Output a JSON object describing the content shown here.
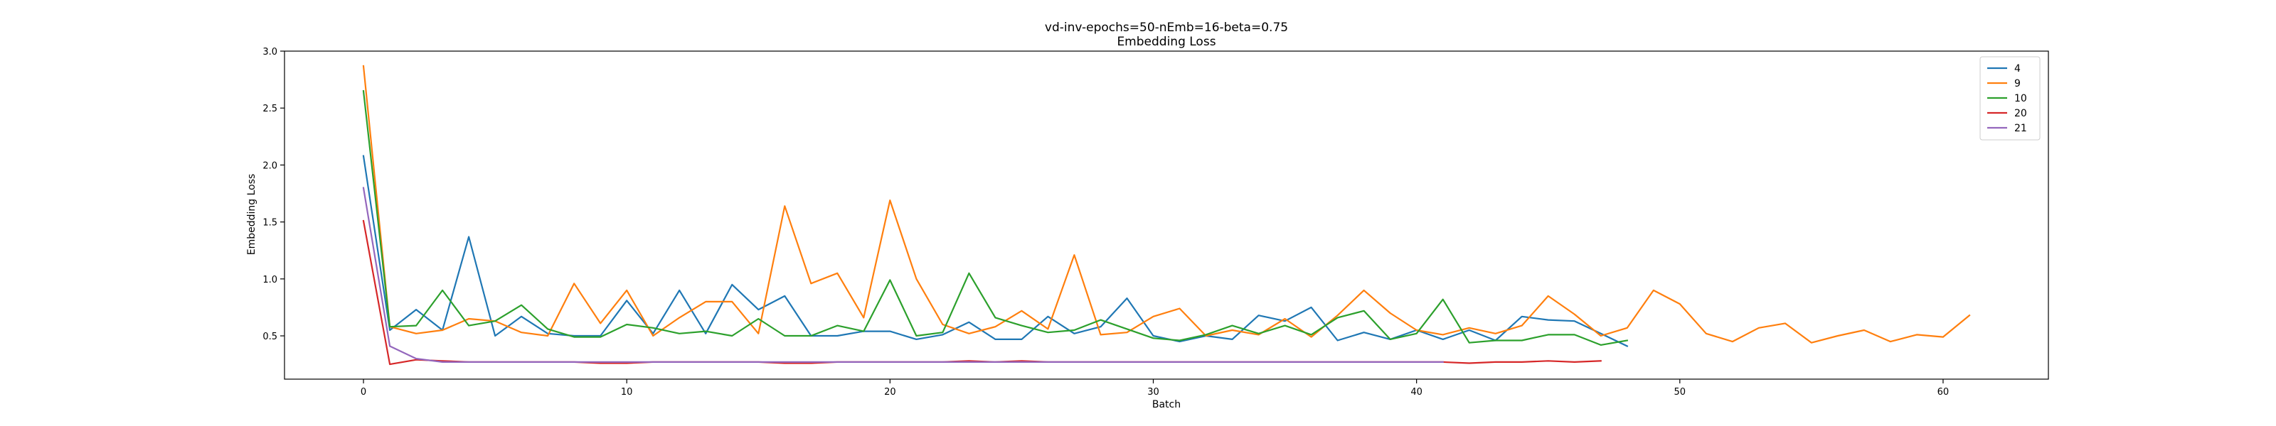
{
  "chart_data": {
    "type": "line",
    "title": "vd-inv-epochs=50-nEmb=16-beta=0.75",
    "subtitle": "Embedding Loss",
    "xlabel": "Batch",
    "ylabel": "Embedding Loss",
    "xlim": [
      -3,
      64
    ],
    "ylim": [
      0.12,
      3.0
    ],
    "xticks": [
      0,
      10,
      20,
      30,
      40,
      50,
      60
    ],
    "yticks": [
      0.5,
      1.0,
      1.5,
      2.0,
      2.5,
      3.0
    ],
    "xtick_labels": [
      "0",
      "10",
      "20",
      "30",
      "40",
      "50",
      "60"
    ],
    "ytick_labels": [
      "0.5",
      "1.0",
      "1.5",
      "2.0",
      "2.5",
      "3.0"
    ],
    "grid": false,
    "legend_position": "top-right",
    "series": [
      {
        "name": "4",
        "color": "#1f77b4",
        "values": [
          2.08,
          0.55,
          0.73,
          0.55,
          1.37,
          0.5,
          0.67,
          0.52,
          0.5,
          0.5,
          0.81,
          0.52,
          0.9,
          0.52,
          0.95,
          0.73,
          0.85,
          0.5,
          0.5,
          0.54,
          0.54,
          0.47,
          0.51,
          0.62,
          0.47,
          0.47,
          0.67,
          0.52,
          0.58,
          0.83,
          0.5,
          0.45,
          0.5,
          0.47,
          0.68,
          0.63,
          0.75,
          0.46,
          0.53,
          0.47,
          0.55,
          0.47,
          0.55,
          0.46,
          0.67,
          0.64,
          0.63,
          0.52,
          0.41
        ]
      },
      {
        "name": "9",
        "color": "#ff7f0e",
        "values": [
          2.87,
          0.58,
          0.52,
          0.55,
          0.65,
          0.63,
          0.53,
          0.5,
          0.96,
          0.61,
          0.9,
          0.5,
          0.66,
          0.8,
          0.8,
          0.52,
          1.64,
          0.96,
          1.05,
          0.66,
          1.69,
          1.0,
          0.6,
          0.52,
          0.58,
          0.72,
          0.56,
          1.21,
          0.51,
          0.53,
          0.67,
          0.74,
          0.5,
          0.55,
          0.51,
          0.65,
          0.49,
          0.68,
          0.9,
          0.7,
          0.55,
          0.51,
          0.57,
          0.52,
          0.59,
          0.85,
          0.69,
          0.5,
          0.57,
          0.9,
          0.78,
          0.52,
          0.45,
          0.57,
          0.61,
          0.44,
          0.5,
          0.55,
          0.45,
          0.51,
          0.49,
          0.68
        ]
      },
      {
        "name": "10",
        "color": "#2ca02c",
        "values": [
          2.65,
          0.58,
          0.59,
          0.9,
          0.59,
          0.63,
          0.77,
          0.56,
          0.49,
          0.49,
          0.6,
          0.57,
          0.52,
          0.54,
          0.5,
          0.65,
          0.5,
          0.5,
          0.59,
          0.54,
          0.99,
          0.5,
          0.53,
          1.05,
          0.66,
          0.59,
          0.53,
          0.55,
          0.64,
          0.56,
          0.48,
          0.46,
          0.51,
          0.59,
          0.52,
          0.59,
          0.51,
          0.66,
          0.72,
          0.47,
          0.52,
          0.82,
          0.44,
          0.46,
          0.46,
          0.51,
          0.51,
          0.42,
          0.46
        ]
      },
      {
        "name": "20",
        "color": "#d62728",
        "values": [
          1.51,
          0.25,
          0.29,
          0.28,
          0.27,
          0.27,
          0.27,
          0.27,
          0.27,
          0.26,
          0.26,
          0.27,
          0.27,
          0.27,
          0.27,
          0.27,
          0.26,
          0.26,
          0.27,
          0.27,
          0.27,
          0.27,
          0.27,
          0.28,
          0.27,
          0.28,
          0.27,
          0.27,
          0.27,
          0.27,
          0.27,
          0.27,
          0.27,
          0.27,
          0.27,
          0.27,
          0.27,
          0.27,
          0.27,
          0.27,
          0.27,
          0.27,
          0.26,
          0.27,
          0.27,
          0.28,
          0.27,
          0.28
        ]
      },
      {
        "name": "21",
        "color": "#9467bd",
        "values": [
          1.8,
          0.41,
          0.3,
          0.27,
          0.27,
          0.27,
          0.27,
          0.27,
          0.27,
          0.27,
          0.27,
          0.27,
          0.27,
          0.27,
          0.27,
          0.27,
          0.27,
          0.27,
          0.27,
          0.27,
          0.27,
          0.27,
          0.27,
          0.27,
          0.27,
          0.27,
          0.27,
          0.27,
          0.27,
          0.27,
          0.27,
          0.27,
          0.27,
          0.27,
          0.27,
          0.27,
          0.27,
          0.27,
          0.27,
          0.27,
          0.27,
          0.27
        ]
      }
    ]
  }
}
